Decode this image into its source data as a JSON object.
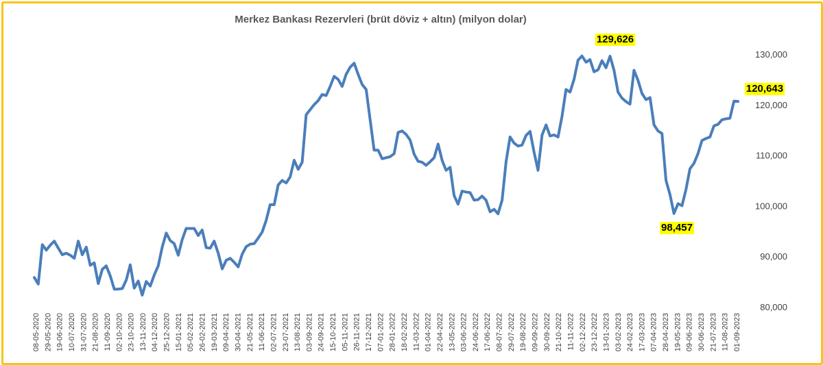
{
  "chart_data": {
    "type": "line",
    "title": "Merkez Bankası Rezervleri (brüt döviz + altın) (milyon dolar)",
    "xlabel": "",
    "ylabel": "",
    "ylim": [
      80000,
      130000
    ],
    "yticks": [
      80000,
      90000,
      100000,
      110000,
      120000,
      130000
    ],
    "ytick_labels": [
      "80,000",
      "90,000",
      "100,000",
      "110,000",
      "120,000",
      "130,000"
    ],
    "y_axis_side": "right",
    "grid": false,
    "legend": "none",
    "colors": {
      "line": "#4A7EBB",
      "annotation_bg": "#FFFF00",
      "frame": "#F5C518"
    },
    "x_tick_labels": [
      "08-05-2020",
      "29-05-2020",
      "19-06-2020",
      "10-07-2020",
      "31-07-2020",
      "21-08-2020",
      "11-09-2020",
      "02-10-2020",
      "23-10-2020",
      "13-11-2020",
      "04-12-2020",
      "25-12-2020",
      "15-01-2021",
      "05-02-2021",
      "26-02-2021",
      "19-03-2021",
      "09-04-2021",
      "30-04-2021",
      "21-05-2021",
      "11-06-2021",
      "02-07-2021",
      "23-07-2021",
      "13-08-2021",
      "03-09-2021",
      "24-09-2021",
      "15-10-2021",
      "05-11-2021",
      "26-11-2021",
      "17-12-2021",
      "07-01-2022",
      "28-01-2022",
      "18-02-2022",
      "11-03-2022",
      "01-04-2022",
      "22-04-2022",
      "13-05-2022",
      "03-06-2022",
      "24-06-2022",
      "17-06-2022",
      "08-07-2022",
      "29-07-2022",
      "19-08-2022",
      "09-09-2022",
      "30-09-2022",
      "21-10-2022",
      "11-11-2022",
      "02-12-2022",
      "23-12-2022",
      "13-01-2023",
      "03-02-2023",
      "24-02-2023",
      "17-03-2023",
      "07-04-2023",
      "28-04-2023",
      "19-05-2023",
      "09-06-2023",
      "30-06-2023",
      "21-07-2023",
      "11-08-2023",
      "01-09-2023"
    ],
    "series": [
      {
        "values": [
          85800,
          84500,
          92300,
          91200,
          92200,
          93000,
          91600,
          90300,
          90600,
          90200,
          89600,
          93000,
          90300,
          91800,
          88200,
          88700,
          84600,
          87400,
          88100,
          86100,
          83500,
          83500,
          83600,
          85300,
          88300,
          83700,
          85100,
          82300,
          85000,
          84100,
          86300,
          88100,
          91800,
          94600,
          93100,
          92500,
          90200,
          93300,
          95500,
          95500,
          95500,
          94100,
          95200,
          91700,
          91600,
          93000,
          90600,
          87500,
          89200,
          89600,
          88800,
          87900,
          90400,
          91900,
          92400,
          92500,
          93600,
          94800,
          97100,
          100200,
          100200,
          104100,
          105000,
          104500,
          105700,
          109000,
          107200,
          108600,
          118000,
          119000,
          120000,
          120800,
          122000,
          121800,
          123600,
          125600,
          125000,
          123600,
          126000,
          127400,
          128200,
          126000,
          124000,
          123000,
          117000,
          111000,
          111000,
          109300,
          109500,
          109700,
          110300,
          114500,
          114800,
          114100,
          113000,
          110200,
          108800,
          108600,
          108000,
          108700,
          109500,
          112200,
          109000,
          107000,
          107600,
          102000,
          100300,
          102900,
          102700,
          102600,
          101100,
          101200,
          101900,
          101100,
          98800,
          99300,
          98400,
          101100,
          108700,
          113600,
          112400,
          111800,
          112000,
          113900,
          114700,
          110600,
          107000,
          114000,
          116000,
          113800,
          114000,
          113600,
          117700,
          123000,
          122500,
          125000,
          128800,
          129626,
          128400,
          128900,
          126500,
          126900,
          128700,
          127300,
          129600,
          126800,
          122500,
          121300,
          120600,
          120100,
          126800,
          124800,
          122200,
          121000,
          121400,
          116000,
          114800,
          114300,
          105000,
          102200,
          98457,
          100400,
          100000,
          103200,
          107300,
          108400,
          110300,
          112900,
          113300,
          113600,
          115800,
          116100,
          117000,
          117200,
          117300,
          120700,
          120643
        ]
      }
    ],
    "annotations": [
      {
        "label": "129,626",
        "value": 129626
      },
      {
        "label": "120,643",
        "value": 120643
      },
      {
        "label": "98,457",
        "value": 98457
      }
    ]
  }
}
